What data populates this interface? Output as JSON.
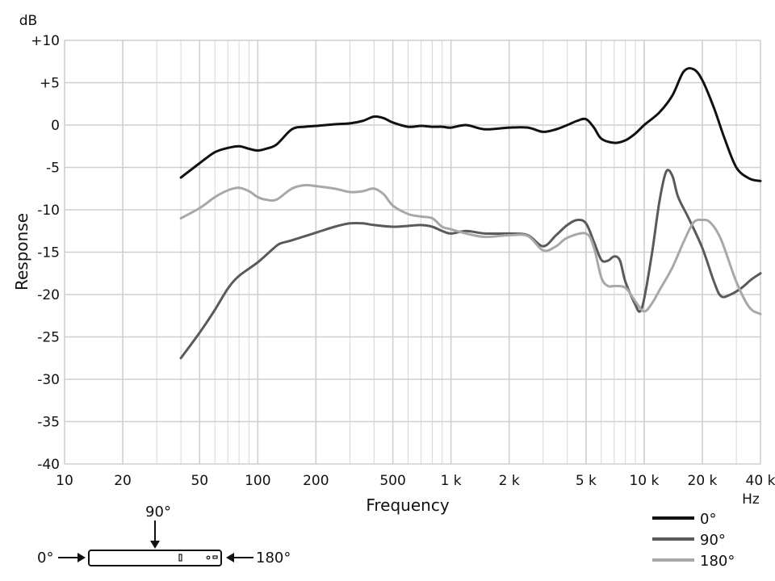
{
  "chart_data": {
    "type": "line",
    "xlabel": "Frequency",
    "ylabel": "Response",
    "x_unit": "Hz",
    "y_unit": "dB",
    "x_scale": "log",
    "xlim": [
      10,
      40000
    ],
    "ylim": [
      -40,
      10
    ],
    "grid": true,
    "legend_position": "bottom-right",
    "x_ticks": [
      {
        "value": 10,
        "label": "10"
      },
      {
        "value": 20,
        "label": "20"
      },
      {
        "value": 50,
        "label": "50"
      },
      {
        "value": 100,
        "label": "100"
      },
      {
        "value": 200,
        "label": "200"
      },
      {
        "value": 500,
        "label": "500"
      },
      {
        "value": 1000,
        "label": "1 k"
      },
      {
        "value": 2000,
        "label": "2 k"
      },
      {
        "value": 5000,
        "label": "5 k"
      },
      {
        "value": 10000,
        "label": "10 k"
      },
      {
        "value": 20000,
        "label": "20 k"
      },
      {
        "value": 40000,
        "label": "40 k"
      }
    ],
    "y_ticks": [
      {
        "value": 10,
        "label": "+10"
      },
      {
        "value": 5,
        "label": "+5"
      },
      {
        "value": 0,
        "label": "0"
      },
      {
        "value": -5,
        "label": "-5"
      },
      {
        "value": -10,
        "label": "-10"
      },
      {
        "value": -15,
        "label": "-15"
      },
      {
        "value": -20,
        "label": "-20"
      },
      {
        "value": -25,
        "label": "-25"
      },
      {
        "value": -30,
        "label": "-30"
      },
      {
        "value": -35,
        "label": "-35"
      },
      {
        "value": -40,
        "label": "-40"
      }
    ],
    "series": [
      {
        "name": "0°",
        "color": "#111111",
        "points": [
          [
            40,
            -6.2
          ],
          [
            50,
            -4.5
          ],
          [
            60,
            -3.2
          ],
          [
            70,
            -2.7
          ],
          [
            80,
            -2.5
          ],
          [
            90,
            -2.8
          ],
          [
            100,
            -3.0
          ],
          [
            110,
            -2.8
          ],
          [
            125,
            -2.3
          ],
          [
            150,
            -0.5
          ],
          [
            175,
            -0.2
          ],
          [
            200,
            -0.1
          ],
          [
            250,
            0.1
          ],
          [
            300,
            0.2
          ],
          [
            350,
            0.5
          ],
          [
            400,
            1.0
          ],
          [
            450,
            0.8
          ],
          [
            500,
            0.3
          ],
          [
            600,
            -0.2
          ],
          [
            700,
            -0.1
          ],
          [
            800,
            -0.2
          ],
          [
            900,
            -0.2
          ],
          [
            1000,
            -0.3
          ],
          [
            1200,
            0.0
          ],
          [
            1500,
            -0.5
          ],
          [
            2000,
            -0.3
          ],
          [
            2500,
            -0.3
          ],
          [
            3000,
            -0.8
          ],
          [
            3500,
            -0.5
          ],
          [
            4000,
            0.0
          ],
          [
            4500,
            0.5
          ],
          [
            5000,
            0.7
          ],
          [
            5500,
            -0.3
          ],
          [
            6000,
            -1.6
          ],
          [
            7000,
            -2.1
          ],
          [
            8000,
            -1.8
          ],
          [
            9000,
            -1.0
          ],
          [
            10000,
            0.0
          ],
          [
            12000,
            1.5
          ],
          [
            14000,
            3.5
          ],
          [
            16000,
            6.3
          ],
          [
            18000,
            6.6
          ],
          [
            20000,
            5.3
          ],
          [
            23000,
            2.0
          ],
          [
            26000,
            -1.5
          ],
          [
            30000,
            -5.0
          ],
          [
            35000,
            -6.3
          ],
          [
            40000,
            -6.6
          ]
        ]
      },
      {
        "name": "90°",
        "color": "#5a5a5a",
        "points": [
          [
            40,
            -27.5
          ],
          [
            50,
            -24.5
          ],
          [
            60,
            -21.8
          ],
          [
            70,
            -19.3
          ],
          [
            80,
            -17.8
          ],
          [
            100,
            -16.2
          ],
          [
            120,
            -14.6
          ],
          [
            130,
            -14.0
          ],
          [
            150,
            -13.6
          ],
          [
            200,
            -12.7
          ],
          [
            250,
            -12.0
          ],
          [
            300,
            -11.6
          ],
          [
            350,
            -11.6
          ],
          [
            400,
            -11.8
          ],
          [
            500,
            -12.0
          ],
          [
            600,
            -11.9
          ],
          [
            700,
            -11.8
          ],
          [
            800,
            -12.0
          ],
          [
            900,
            -12.5
          ],
          [
            1000,
            -12.8
          ],
          [
            1200,
            -12.5
          ],
          [
            1500,
            -12.8
          ],
          [
            2000,
            -12.8
          ],
          [
            2500,
            -13.0
          ],
          [
            3000,
            -14.3
          ],
          [
            3500,
            -13.0
          ],
          [
            4000,
            -11.8
          ],
          [
            4500,
            -11.2
          ],
          [
            5000,
            -11.6
          ],
          [
            5500,
            -13.8
          ],
          [
            6000,
            -15.9
          ],
          [
            6500,
            -16.0
          ],
          [
            7000,
            -15.5
          ],
          [
            7500,
            -16.0
          ],
          [
            8000,
            -18.5
          ],
          [
            9000,
            -21.2
          ],
          [
            9500,
            -22.0
          ],
          [
            10000,
            -20.5
          ],
          [
            11000,
            -15.0
          ],
          [
            12000,
            -9.0
          ],
          [
            13000,
            -5.5
          ],
          [
            14000,
            -6.0
          ],
          [
            15000,
            -8.5
          ],
          [
            17000,
            -11.0
          ],
          [
            20000,
            -14.5
          ],
          [
            23000,
            -18.5
          ],
          [
            25000,
            -20.2
          ],
          [
            28000,
            -20.0
          ],
          [
            32000,
            -19.2
          ],
          [
            36000,
            -18.2
          ],
          [
            40000,
            -17.5
          ]
        ]
      },
      {
        "name": "180°",
        "color": "#a8a8a8",
        "points": [
          [
            40,
            -11.0
          ],
          [
            50,
            -9.8
          ],
          [
            60,
            -8.5
          ],
          [
            70,
            -7.7
          ],
          [
            80,
            -7.4
          ],
          [
            90,
            -7.8
          ],
          [
            100,
            -8.5
          ],
          [
            110,
            -8.8
          ],
          [
            125,
            -8.8
          ],
          [
            150,
            -7.5
          ],
          [
            175,
            -7.1
          ],
          [
            200,
            -7.2
          ],
          [
            250,
            -7.5
          ],
          [
            300,
            -7.9
          ],
          [
            350,
            -7.8
          ],
          [
            400,
            -7.5
          ],
          [
            450,
            -8.2
          ],
          [
            500,
            -9.5
          ],
          [
            600,
            -10.5
          ],
          [
            700,
            -10.8
          ],
          [
            800,
            -11.0
          ],
          [
            900,
            -12.0
          ],
          [
            1000,
            -12.3
          ],
          [
            1200,
            -12.8
          ],
          [
            1500,
            -13.2
          ],
          [
            2000,
            -13.0
          ],
          [
            2500,
            -13.1
          ],
          [
            3000,
            -14.8
          ],
          [
            3500,
            -14.3
          ],
          [
            4000,
            -13.3
          ],
          [
            5000,
            -12.8
          ],
          [
            5500,
            -14.5
          ],
          [
            6000,
            -18.0
          ],
          [
            6500,
            -19.0
          ],
          [
            7000,
            -19.0
          ],
          [
            8000,
            -19.2
          ],
          [
            9000,
            -20.8
          ],
          [
            10000,
            -22.0
          ],
          [
            11000,
            -21.0
          ],
          [
            12000,
            -19.5
          ],
          [
            14000,
            -16.8
          ],
          [
            16000,
            -13.8
          ],
          [
            18000,
            -11.5
          ],
          [
            20000,
            -11.2
          ],
          [
            22000,
            -11.5
          ],
          [
            25000,
            -13.5
          ],
          [
            30000,
            -18.5
          ],
          [
            35000,
            -21.5
          ],
          [
            40000,
            -22.3
          ]
        ]
      }
    ]
  },
  "diagram": {
    "label_90": "90°",
    "label_0": "0°",
    "label_180": "180°"
  }
}
